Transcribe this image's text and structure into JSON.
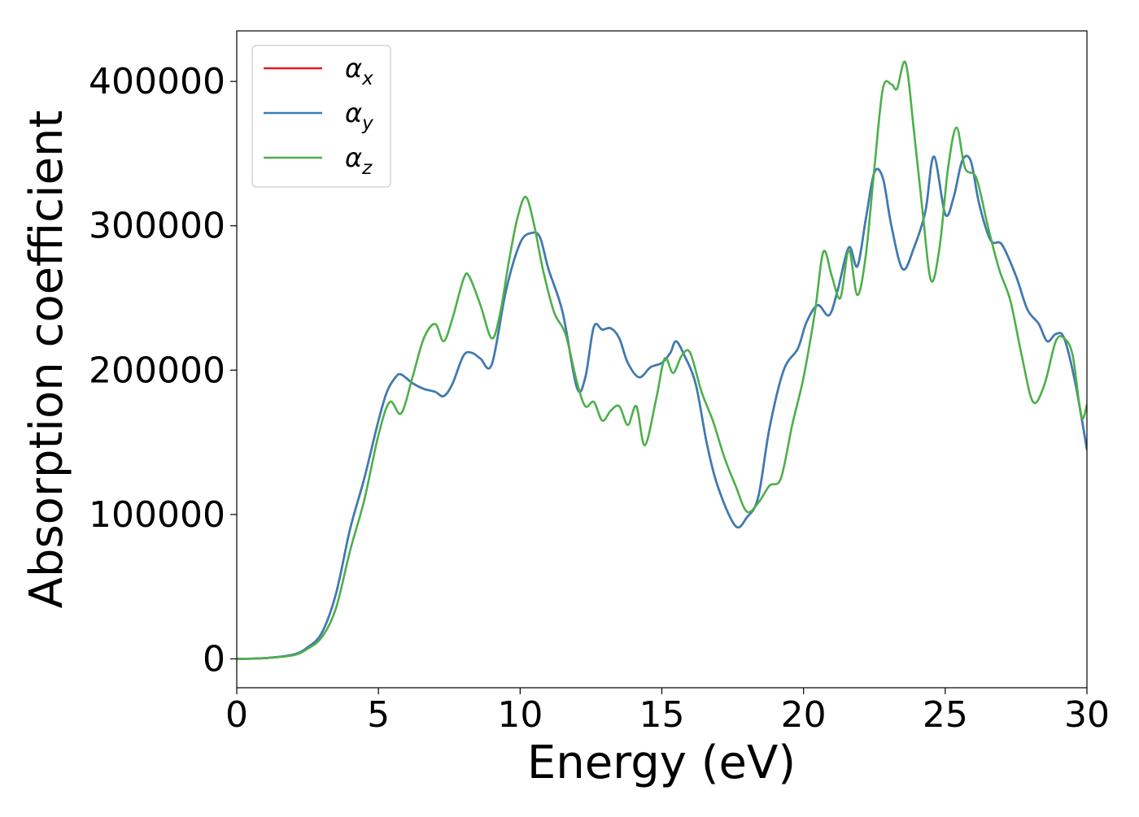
{
  "chart_data": {
    "type": "line",
    "title": "",
    "xlabel": "Energy (eV)",
    "ylabel": "Absorption coefficient",
    "xlim": [
      0,
      30
    ],
    "ylim": [
      -20000,
      435000
    ],
    "xticks": [
      0,
      5,
      10,
      15,
      20,
      25,
      30
    ],
    "yticks": [
      0,
      100000,
      200000,
      300000,
      400000
    ],
    "grid": false,
    "legend": {
      "placement": "top-left",
      "entries": [
        {
          "base": "α",
          "sub": "x"
        },
        {
          "base": "α",
          "sub": "y"
        },
        {
          "base": "α",
          "sub": "z"
        }
      ]
    },
    "series": [
      {
        "name": "αx",
        "color": "#e41a1c",
        "x": [
          0,
          1,
          2,
          2.5,
          3,
          3.5,
          4,
          4.5,
          5,
          5.3,
          5.6,
          5.8,
          6.2,
          6.6,
          7,
          7.3,
          7.6,
          8,
          8.3,
          8.6,
          9,
          9.5,
          10,
          10.4,
          10.7,
          11,
          11.5,
          12,
          12.3,
          12.6,
          12.9,
          13.2,
          13.5,
          13.8,
          14.2,
          14.6,
          15,
          15.3,
          15.5,
          15.8,
          16.2,
          16.6,
          17,
          17.6,
          18,
          18.4,
          18.8,
          19.3,
          19.8,
          20.1,
          20.5,
          20.9,
          21.2,
          21.6,
          21.9,
          22.2,
          22.5,
          22.8,
          23.1,
          23.5,
          23.9,
          24.3,
          24.6,
          25,
          25.3,
          25.6,
          25.9,
          26.2,
          26.6,
          27,
          27.5,
          27.9,
          28.3,
          28.6,
          28.9,
          29.2,
          29.6,
          30
        ],
        "y": [
          0,
          500,
          3000,
          8000,
          18000,
          45000,
          90000,
          125000,
          165000,
          185000,
          195000,
          197000,
          191000,
          187000,
          185000,
          182000,
          190000,
          210000,
          212000,
          208000,
          204000,
          255000,
          288000,
          295000,
          292000,
          270000,
          240000,
          188000,
          195000,
          230000,
          228000,
          229000,
          222000,
          205000,
          195000,
          202000,
          205000,
          212000,
          220000,
          210000,
          190000,
          148000,
          118000,
          92000,
          98000,
          112000,
          160000,
          200000,
          215000,
          233000,
          245000,
          238000,
          255000,
          285000,
          272000,
          305000,
          337000,
          333000,
          300000,
          270000,
          285000,
          310000,
          348000,
          308000,
          320000,
          345000,
          345000,
          315000,
          290000,
          287000,
          265000,
          242000,
          232000,
          220000,
          225000,
          222000,
          190000,
          145000
        ]
      },
      {
        "name": "αy",
        "color": "#377eb8",
        "x": [
          0,
          1,
          2,
          2.5,
          3,
          3.5,
          4,
          4.5,
          5,
          5.3,
          5.6,
          5.8,
          6.2,
          6.6,
          7,
          7.3,
          7.6,
          8,
          8.3,
          8.6,
          9,
          9.5,
          10,
          10.4,
          10.7,
          11,
          11.5,
          12,
          12.3,
          12.6,
          12.9,
          13.2,
          13.5,
          13.8,
          14.2,
          14.6,
          15,
          15.3,
          15.5,
          15.8,
          16.2,
          16.6,
          17,
          17.6,
          18,
          18.4,
          18.8,
          19.3,
          19.8,
          20.1,
          20.5,
          20.9,
          21.2,
          21.6,
          21.9,
          22.2,
          22.5,
          22.8,
          23.1,
          23.5,
          23.9,
          24.3,
          24.6,
          25,
          25.3,
          25.6,
          25.9,
          26.2,
          26.6,
          27,
          27.5,
          27.9,
          28.3,
          28.6,
          28.9,
          29.2,
          29.6,
          30
        ],
        "y": [
          0,
          500,
          3000,
          8000,
          18000,
          45000,
          90000,
          125000,
          165000,
          185000,
          195000,
          197000,
          191000,
          187000,
          185000,
          182000,
          190000,
          210000,
          212000,
          208000,
          204000,
          255000,
          288000,
          295000,
          292000,
          270000,
          240000,
          188000,
          195000,
          230000,
          228000,
          229000,
          222000,
          205000,
          195000,
          202000,
          205000,
          212000,
          220000,
          210000,
          190000,
          148000,
          118000,
          92000,
          98000,
          112000,
          160000,
          200000,
          215000,
          233000,
          245000,
          238000,
          255000,
          285000,
          272000,
          305000,
          337000,
          333000,
          300000,
          270000,
          285000,
          310000,
          348000,
          308000,
          320000,
          345000,
          345000,
          315000,
          290000,
          287000,
          265000,
          242000,
          232000,
          220000,
          225000,
          222000,
          190000,
          145000
        ]
      },
      {
        "name": "αz",
        "color": "#4daf4a",
        "x": [
          0,
          1,
          2,
          2.5,
          3,
          3.5,
          4,
          4.5,
          5,
          5.4,
          5.8,
          6.2,
          6.6,
          7,
          7.3,
          7.6,
          8,
          8.2,
          8.6,
          9,
          9.3,
          9.6,
          9.9,
          10.2,
          10.5,
          10.8,
          11.2,
          11.6,
          12,
          12.3,
          12.6,
          12.9,
          13.2,
          13.5,
          13.8,
          14.1,
          14.4,
          14.8,
          15.1,
          15.4,
          15.7,
          16,
          16.4,
          16.8,
          17.2,
          17.6,
          18,
          18.4,
          18.8,
          19.2,
          19.6,
          20,
          20.4,
          20.7,
          21,
          21.3,
          21.6,
          21.9,
          22.2,
          22.5,
          22.8,
          23.1,
          23.3,
          23.6,
          23.9,
          24.2,
          24.5,
          24.8,
          25.1,
          25.4,
          25.7,
          26.1,
          26.5,
          26.9,
          27.3,
          27.7,
          28.1,
          28.5,
          28.9,
          29.2,
          29.5,
          29.8,
          30
        ],
        "y": [
          0,
          500,
          2500,
          7000,
          15000,
          35000,
          75000,
          110000,
          155000,
          178000,
          170000,
          195000,
          222000,
          232000,
          220000,
          235000,
          263000,
          265000,
          245000,
          222000,
          240000,
          275000,
          305000,
          320000,
          300000,
          270000,
          240000,
          225000,
          192000,
          175000,
          178000,
          165000,
          172000,
          175000,
          162000,
          175000,
          148000,
          180000,
          208000,
          198000,
          210000,
          212000,
          185000,
          165000,
          140000,
          120000,
          102000,
          108000,
          120000,
          125000,
          162000,
          195000,
          240000,
          282000,
          265000,
          250000,
          283000,
          252000,
          280000,
          340000,
          395000,
          398000,
          395000,
          413000,
          365000,
          310000,
          262000,
          285000,
          340000,
          368000,
          340000,
          333000,
          300000,
          270000,
          248000,
          210000,
          178000,
          190000,
          220000,
          222000,
          210000,
          168000,
          176000
        ]
      }
    ]
  }
}
